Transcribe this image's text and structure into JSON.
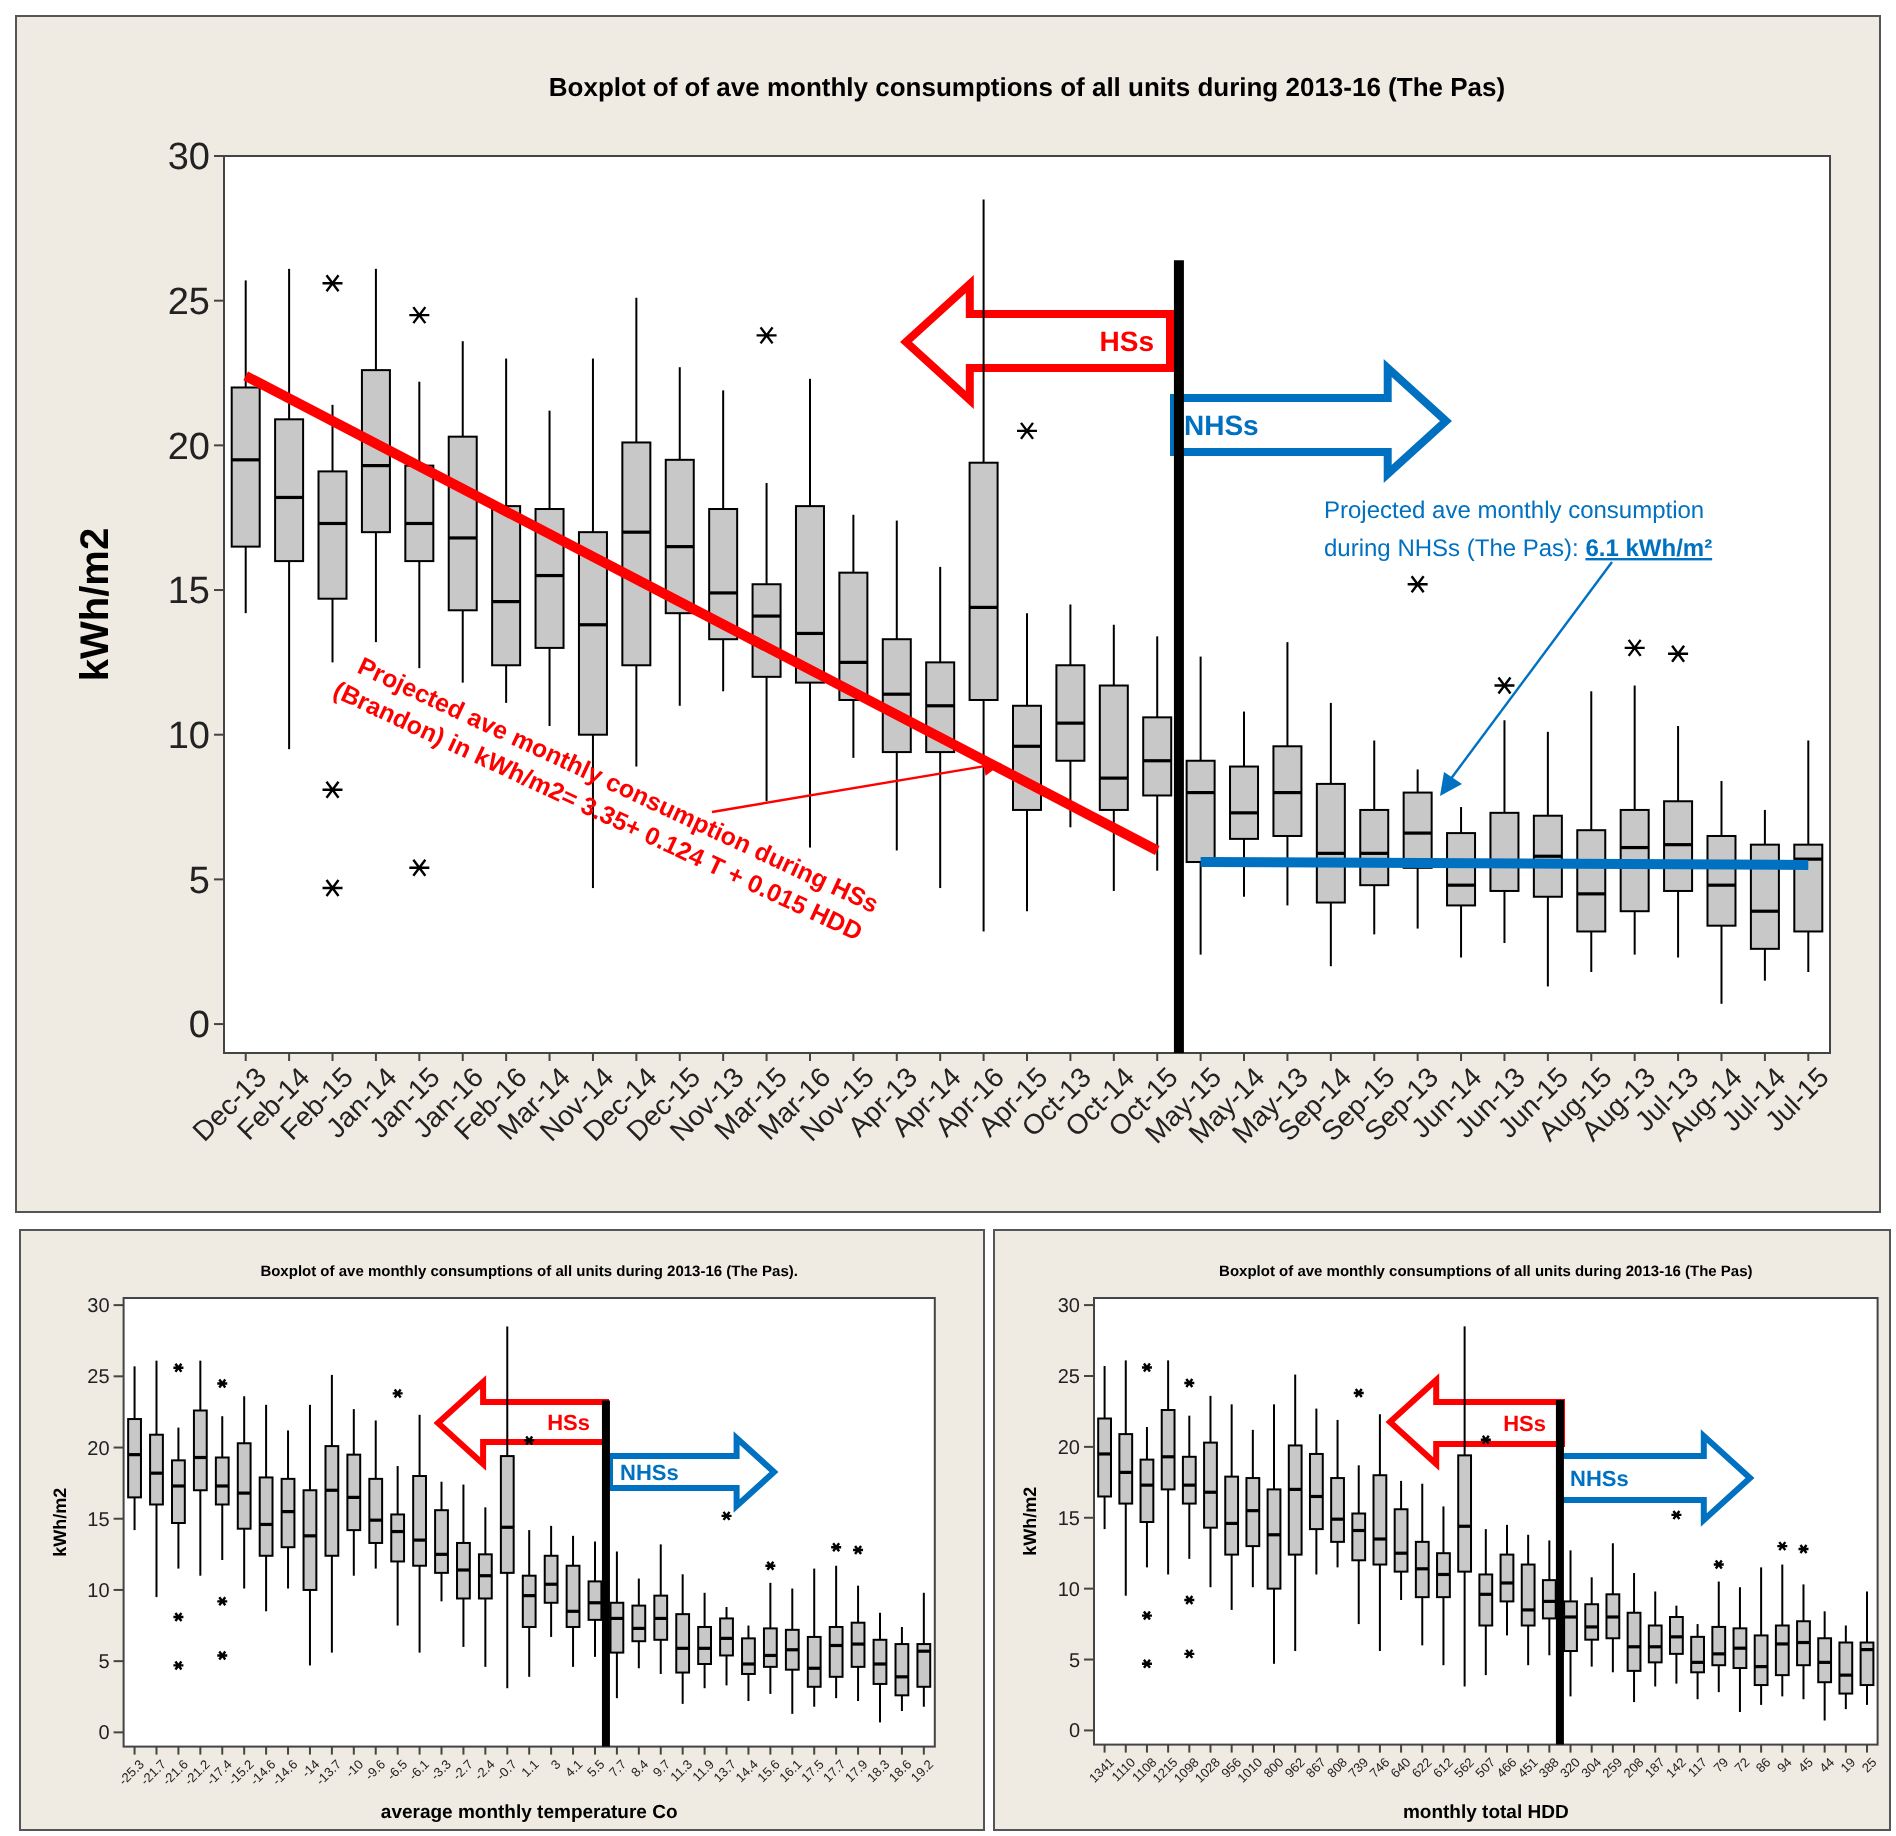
{
  "chart_data": [
    {
      "type": "box",
      "title": "Boxplot of of ave monthly consumptions of all units during 2013-16 (The Pas)",
      "ylabel": "kWh/m2",
      "categories": [
        "Dec-13",
        "Feb-14",
        "Feb-15",
        "Jan-14",
        "Jan-15",
        "Jan-16",
        "Feb-16",
        "Mar-14",
        "Nov-14",
        "Dec-14",
        "Dec-15",
        "Nov-13",
        "Mar-15",
        "Mar-16",
        "Nov-15",
        "Apr-13",
        "Apr-14",
        "Apr-16",
        "Apr-15",
        "Oct-13",
        "Oct-14",
        "Oct-15",
        "May-15",
        "May-14",
        "May-13",
        "Sep-14",
        "Sep-15",
        "Sep-13",
        "Jun-14",
        "Jun-13",
        "Jun-15",
        "Aug-15",
        "Aug-13",
        "Jul-13",
        "Aug-14",
        "Jul-14",
        "Jul-15"
      ],
      "ylim": [
        -1,
        30
      ],
      "yticks": [
        0,
        5,
        10,
        15,
        20,
        25,
        30
      ],
      "grid": false,
      "boxes": [
        {
          "low": 14.2,
          "q1": 16.5,
          "median": 19.5,
          "q3": 22.0,
          "high": 25.7
        },
        {
          "low": 9.5,
          "q1": 16.0,
          "median": 18.2,
          "q3": 20.9,
          "high": 26.1
        },
        {
          "low": 12.5,
          "q1": 14.7,
          "median": 17.3,
          "q3": 19.1,
          "high": 21.4,
          "outliers": [
            25.6,
            8.1,
            4.7
          ]
        },
        {
          "low": 13.2,
          "q1": 17.0,
          "median": 19.3,
          "q3": 22.6,
          "high": 26.1
        },
        {
          "low": 12.3,
          "q1": 16.0,
          "median": 17.3,
          "q3": 19.3,
          "high": 22.2,
          "outliers": [
            24.5,
            5.4
          ]
        },
        {
          "low": 11.8,
          "q1": 14.3,
          "median": 16.8,
          "q3": 20.3,
          "high": 23.6
        },
        {
          "low": 11.1,
          "q1": 12.4,
          "median": 14.6,
          "q3": 17.9,
          "high": 23.0
        },
        {
          "low": 10.3,
          "q1": 13.0,
          "median": 15.5,
          "q3": 17.8,
          "high": 21.2
        },
        {
          "low": 4.7,
          "q1": 10.0,
          "median": 13.8,
          "q3": 17.0,
          "high": 23.0
        },
        {
          "low": 8.9,
          "q1": 12.4,
          "median": 17.0,
          "q3": 20.1,
          "high": 25.1
        },
        {
          "low": 11.0,
          "q1": 14.2,
          "median": 16.5,
          "q3": 19.5,
          "high": 22.7
        },
        {
          "low": 11.5,
          "q1": 13.3,
          "median": 14.9,
          "q3": 17.8,
          "high": 21.9
        },
        {
          "low": 7.7,
          "q1": 12.0,
          "median": 14.1,
          "q3": 15.2,
          "high": 18.7,
          "outliers": [
            23.8
          ]
        },
        {
          "low": 6.1,
          "q1": 11.8,
          "median": 13.5,
          "q3": 17.9,
          "high": 22.3
        },
        {
          "low": 9.2,
          "q1": 11.2,
          "median": 12.5,
          "q3": 15.6,
          "high": 17.6
        },
        {
          "low": 6.0,
          "q1": 9.4,
          "median": 11.4,
          "q3": 13.3,
          "high": 17.4
        },
        {
          "low": 4.7,
          "q1": 9.4,
          "median": 11.0,
          "q3": 12.5,
          "high": 15.8
        },
        {
          "low": 3.2,
          "q1": 11.2,
          "median": 14.4,
          "q3": 19.4,
          "high": 28.5
        },
        {
          "low": 3.9,
          "q1": 7.4,
          "median": 9.6,
          "q3": 11.0,
          "high": 14.2,
          "outliers": [
            20.5
          ]
        },
        {
          "low": 6.8,
          "q1": 9.1,
          "median": 10.4,
          "q3": 12.4,
          "high": 14.5
        },
        {
          "low": 4.6,
          "q1": 7.4,
          "median": 8.5,
          "q3": 11.7,
          "high": 13.8
        },
        {
          "low": 5.3,
          "q1": 7.9,
          "median": 9.1,
          "q3": 10.6,
          "high": 13.4
        },
        {
          "low": 2.4,
          "q1": 5.6,
          "median": 8.0,
          "q3": 9.1,
          "high": 12.7
        },
        {
          "low": 4.4,
          "q1": 6.4,
          "median": 7.3,
          "q3": 8.9,
          "high": 10.8
        },
        {
          "low": 4.1,
          "q1": 6.5,
          "median": 8.0,
          "q3": 9.6,
          "high": 13.2
        },
        {
          "low": 2.0,
          "q1": 4.2,
          "median": 5.9,
          "q3": 8.3,
          "high": 11.1
        },
        {
          "low": 3.1,
          "q1": 4.8,
          "median": 5.9,
          "q3": 7.4,
          "high": 9.8
        },
        {
          "low": 3.3,
          "q1": 5.4,
          "median": 6.6,
          "q3": 8.0,
          "high": 8.8,
          "outliers": [
            15.2
          ]
        },
        {
          "low": 2.3,
          "q1": 4.1,
          "median": 4.8,
          "q3": 6.6,
          "high": 7.5
        },
        {
          "low": 2.8,
          "q1": 4.6,
          "median": 5.5,
          "q3": 7.3,
          "high": 10.5,
          "outliers": [
            11.7
          ]
        },
        {
          "low": 1.3,
          "q1": 4.4,
          "median": 5.8,
          "q3": 7.2,
          "high": 10.1
        },
        {
          "low": 1.8,
          "q1": 3.2,
          "median": 4.5,
          "q3": 6.7,
          "high": 11.5
        },
        {
          "low": 2.4,
          "q1": 3.9,
          "median": 6.1,
          "q3": 7.4,
          "high": 11.7,
          "outliers": [
            13.0
          ]
        },
        {
          "low": 2.3,
          "q1": 4.6,
          "median": 6.2,
          "q3": 7.7,
          "high": 10.3,
          "outliers": [
            12.8
          ]
        },
        {
          "low": 0.7,
          "q1": 3.4,
          "median": 4.8,
          "q3": 6.5,
          "high": 8.4
        },
        {
          "low": 1.5,
          "q1": 2.6,
          "median": 3.9,
          "q3": 6.2,
          "high": 7.4
        },
        {
          "low": 1.8,
          "q1": 3.2,
          "median": 5.7,
          "q3": 6.2,
          "high": 9.8
        }
      ],
      "series": [
        {
          "type": "line",
          "color": "#ff0000",
          "x": [
            "Dec-13",
            "Oct-15"
          ],
          "values": [
            22.4,
            6.0
          ]
        },
        {
          "type": "line",
          "color": "#0070c0",
          "x": [
            "May-15",
            "Jul-15"
          ],
          "values": [
            5.6,
            5.5
          ]
        }
      ],
      "annotations": [
        "HSs",
        "NHSs",
        {
          "text": "Projected ave monthly consumption during HSs (Brandon) in kWh/m2= 3.35+ 0.124 T + 0.015 HDD",
          "x": "Apr-16",
          "y": 9.0
        },
        "Projected ave monthly consumption during NHSs (The Pas): 6.1 kWh/m²"
      ]
    },
    {
      "type": "box",
      "title": "Boxplot of ave monthly consumptions of all units during 2013-16 (The Pas).",
      "ylabel": "kWh/m2",
      "xlabel": "average monthly temperature Co",
      "categories": [
        "-25.3",
        "-21.7",
        "-21.6",
        "-21.2",
        "-17.4",
        "-15.2",
        "-14.6",
        "-14.6",
        "-14",
        "-13.7",
        "-10",
        "-9.6",
        "-6.5",
        "-6.1",
        "-3.3",
        "-2.7",
        "-2.4",
        "-0.7",
        "1.1",
        "3",
        "4.1",
        "5.5",
        "7.7",
        "8.4",
        "9.7",
        "11.3",
        "11.9",
        "13.7",
        "14.4",
        "15.6",
        "16.1",
        "17.5",
        "17.7",
        "17.9",
        "18.3",
        "18.6",
        "19.2"
      ],
      "ylim": [
        -1,
        30.5
      ],
      "yticks": [
        0,
        5,
        10,
        15,
        20,
        25,
        30
      ],
      "grid": false,
      "boxes": [
        {
          "low": 14.2,
          "q1": 16.5,
          "median": 19.5,
          "q3": 22.0,
          "high": 25.7
        },
        {
          "low": 9.5,
          "q1": 16.0,
          "median": 18.2,
          "q3": 20.9,
          "high": 26.1
        },
        {
          "low": 11.5,
          "q1": 14.7,
          "median": 17.3,
          "q3": 19.1,
          "high": 21.4,
          "outliers": [
            25.6,
            8.1,
            4.7
          ]
        },
        {
          "low": 11.0,
          "q1": 17.0,
          "median": 19.3,
          "q3": 22.6,
          "high": 26.1
        },
        {
          "low": 12.1,
          "q1": 16.0,
          "median": 17.3,
          "q3": 19.3,
          "high": 22.2,
          "outliers": [
            24.5,
            9.2,
            5.4
          ]
        },
        {
          "low": 10.1,
          "q1": 14.3,
          "median": 16.8,
          "q3": 20.3,
          "high": 23.6
        },
        {
          "low": 8.5,
          "q1": 12.4,
          "median": 14.6,
          "q3": 17.9,
          "high": 23.0
        },
        {
          "low": 10.1,
          "q1": 13.0,
          "median": 15.5,
          "q3": 17.8,
          "high": 21.2
        },
        {
          "low": 4.7,
          "q1": 10.0,
          "median": 13.8,
          "q3": 17.0,
          "high": 23.0
        },
        {
          "low": 5.6,
          "q1": 12.4,
          "median": 17.0,
          "q3": 20.1,
          "high": 25.1
        },
        {
          "low": 11.0,
          "q1": 14.2,
          "median": 16.5,
          "q3": 19.5,
          "high": 22.7
        },
        {
          "low": 11.5,
          "q1": 13.3,
          "median": 14.9,
          "q3": 17.8,
          "high": 21.9
        },
        {
          "low": 7.5,
          "q1": 12.0,
          "median": 14.1,
          "q3": 15.3,
          "high": 18.7,
          "outliers": [
            23.8
          ]
        },
        {
          "low": 5.6,
          "q1": 11.7,
          "median": 13.5,
          "q3": 18.0,
          "high": 22.3
        },
        {
          "low": 9.2,
          "q1": 11.2,
          "median": 12.5,
          "q3": 15.6,
          "high": 17.6
        },
        {
          "low": 6.0,
          "q1": 9.4,
          "median": 11.4,
          "q3": 13.3,
          "high": 17.4
        },
        {
          "low": 4.6,
          "q1": 9.4,
          "median": 11.0,
          "q3": 12.5,
          "high": 15.8
        },
        {
          "low": 3.1,
          "q1": 11.2,
          "median": 14.4,
          "q3": 19.4,
          "high": 28.5
        },
        {
          "low": 3.9,
          "q1": 7.4,
          "median": 9.6,
          "q3": 11.0,
          "high": 14.2,
          "outliers": [
            20.5
          ]
        },
        {
          "low": 6.7,
          "q1": 9.1,
          "median": 10.4,
          "q3": 12.4,
          "high": 14.5
        },
        {
          "low": 4.6,
          "q1": 7.4,
          "median": 8.5,
          "q3": 11.7,
          "high": 13.8
        },
        {
          "low": 5.3,
          "q1": 7.9,
          "median": 9.1,
          "q3": 10.6,
          "high": 13.4
        },
        {
          "low": 2.4,
          "q1": 5.6,
          "median": 8.0,
          "q3": 9.1,
          "high": 12.7
        },
        {
          "low": 4.5,
          "q1": 6.4,
          "median": 7.3,
          "q3": 8.9,
          "high": 10.8
        },
        {
          "low": 4.1,
          "q1": 6.5,
          "median": 8.0,
          "q3": 9.6,
          "high": 13.2
        },
        {
          "low": 2.0,
          "q1": 4.2,
          "median": 5.9,
          "q3": 8.3,
          "high": 11.1
        },
        {
          "low": 3.1,
          "q1": 4.8,
          "median": 5.9,
          "q3": 7.4,
          "high": 9.8
        },
        {
          "low": 3.3,
          "q1": 5.4,
          "median": 6.6,
          "q3": 8.0,
          "high": 8.8,
          "outliers": [
            15.2
          ]
        },
        {
          "low": 2.2,
          "q1": 4.1,
          "median": 4.8,
          "q3": 6.6,
          "high": 7.5
        },
        {
          "low": 2.7,
          "q1": 4.6,
          "median": 5.4,
          "q3": 7.3,
          "high": 10.5,
          "outliers": [
            11.7
          ]
        },
        {
          "low": 1.3,
          "q1": 4.4,
          "median": 5.8,
          "q3": 7.2,
          "high": 10.1
        },
        {
          "low": 1.8,
          "q1": 3.2,
          "median": 4.5,
          "q3": 6.7,
          "high": 11.5
        },
        {
          "low": 2.4,
          "q1": 3.9,
          "median": 6.1,
          "q3": 7.4,
          "high": 11.7,
          "outliers": [
            13.0
          ]
        },
        {
          "low": 2.2,
          "q1": 4.6,
          "median": 6.2,
          "q3": 7.7,
          "high": 10.3,
          "outliers": [
            12.8
          ]
        },
        {
          "low": 0.7,
          "q1": 3.4,
          "median": 4.8,
          "q3": 6.5,
          "high": 8.4
        },
        {
          "low": 1.5,
          "q1": 2.6,
          "median": 3.9,
          "q3": 6.2,
          "high": 7.4
        },
        {
          "low": 1.8,
          "q1": 3.2,
          "median": 5.7,
          "q3": 6.2,
          "high": 9.8
        }
      ],
      "annotations": [
        "HSs",
        "NHSs"
      ]
    },
    {
      "type": "box",
      "title": "Boxplot of ave monthly consumptions of all units during 2013-16 (The Pas)",
      "ylabel": "kWh/m2",
      "xlabel": "monthly total HDD",
      "categories": [
        "1341",
        "1110",
        "1108",
        "1215",
        "1098",
        "1028",
        "956",
        "1010",
        "800",
        "962",
        "867",
        "808",
        "739",
        "746",
        "640",
        "622",
        "612",
        "562",
        "507",
        "466",
        "451",
        "388",
        "320",
        "304",
        "259",
        "208",
        "187",
        "142",
        "117",
        "79",
        "72",
        "86",
        "94",
        "45",
        "44",
        "19",
        "25"
      ],
      "ylim": [
        -1,
        30.5
      ],
      "yticks": [
        0,
        5,
        10,
        15,
        20,
        25,
        30
      ],
      "grid": false,
      "boxes": [
        {
          "low": 14.2,
          "q1": 16.5,
          "median": 19.5,
          "q3": 22.0,
          "high": 25.7
        },
        {
          "low": 9.5,
          "q1": 16.0,
          "median": 18.2,
          "q3": 20.9,
          "high": 26.1
        },
        {
          "low": 11.5,
          "q1": 14.7,
          "median": 17.3,
          "q3": 19.1,
          "high": 21.4,
          "outliers": [
            25.6,
            8.1,
            4.7
          ]
        },
        {
          "low": 11.0,
          "q1": 17.0,
          "median": 19.3,
          "q3": 22.6,
          "high": 26.1
        },
        {
          "low": 12.1,
          "q1": 16.0,
          "median": 17.3,
          "q3": 19.3,
          "high": 22.2,
          "outliers": [
            24.5,
            9.2,
            5.4
          ]
        },
        {
          "low": 10.1,
          "q1": 14.3,
          "median": 16.8,
          "q3": 20.3,
          "high": 23.6
        },
        {
          "low": 8.5,
          "q1": 12.4,
          "median": 14.6,
          "q3": 17.9,
          "high": 23.0
        },
        {
          "low": 10.1,
          "q1": 13.0,
          "median": 15.5,
          "q3": 17.8,
          "high": 21.2
        },
        {
          "low": 4.7,
          "q1": 10.0,
          "median": 13.8,
          "q3": 17.0,
          "high": 23.0
        },
        {
          "low": 5.6,
          "q1": 12.4,
          "median": 17.0,
          "q3": 20.1,
          "high": 25.1
        },
        {
          "low": 11.0,
          "q1": 14.2,
          "median": 16.5,
          "q3": 19.5,
          "high": 22.7
        },
        {
          "low": 11.5,
          "q1": 13.3,
          "median": 14.9,
          "q3": 17.8,
          "high": 21.9
        },
        {
          "low": 7.5,
          "q1": 12.0,
          "median": 14.1,
          "q3": 15.3,
          "high": 18.7,
          "outliers": [
            23.8
          ]
        },
        {
          "low": 5.6,
          "q1": 11.7,
          "median": 13.5,
          "q3": 18.0,
          "high": 22.3
        },
        {
          "low": 9.2,
          "q1": 11.2,
          "median": 12.5,
          "q3": 15.6,
          "high": 17.6
        },
        {
          "low": 6.0,
          "q1": 9.4,
          "median": 11.4,
          "q3": 13.3,
          "high": 17.4
        },
        {
          "low": 4.6,
          "q1": 9.4,
          "median": 11.0,
          "q3": 12.5,
          "high": 15.8
        },
        {
          "low": 3.1,
          "q1": 11.2,
          "median": 14.4,
          "q3": 19.4,
          "high": 28.5
        },
        {
          "low": 3.9,
          "q1": 7.4,
          "median": 9.6,
          "q3": 11.0,
          "high": 14.2,
          "outliers": [
            20.5
          ]
        },
        {
          "low": 6.7,
          "q1": 9.1,
          "median": 10.4,
          "q3": 12.4,
          "high": 14.5
        },
        {
          "low": 4.6,
          "q1": 7.4,
          "median": 8.5,
          "q3": 11.7,
          "high": 13.8
        },
        {
          "low": 5.3,
          "q1": 7.9,
          "median": 9.1,
          "q3": 10.6,
          "high": 13.4
        },
        {
          "low": 2.4,
          "q1": 5.6,
          "median": 8.0,
          "q3": 9.1,
          "high": 12.7
        },
        {
          "low": 4.5,
          "q1": 6.4,
          "median": 7.3,
          "q3": 8.9,
          "high": 10.8
        },
        {
          "low": 4.1,
          "q1": 6.5,
          "median": 8.0,
          "q3": 9.6,
          "high": 13.2
        },
        {
          "low": 2.0,
          "q1": 4.2,
          "median": 5.9,
          "q3": 8.3,
          "high": 11.1
        },
        {
          "low": 3.1,
          "q1": 4.8,
          "median": 5.9,
          "q3": 7.4,
          "high": 9.8
        },
        {
          "low": 3.3,
          "q1": 5.4,
          "median": 6.6,
          "q3": 8.0,
          "high": 8.8,
          "outliers": [
            15.2
          ]
        },
        {
          "low": 2.2,
          "q1": 4.1,
          "median": 4.8,
          "q3": 6.6,
          "high": 7.5
        },
        {
          "low": 2.7,
          "q1": 4.6,
          "median": 5.4,
          "q3": 7.3,
          "high": 10.5,
          "outliers": [
            11.7
          ]
        },
        {
          "low": 1.3,
          "q1": 4.4,
          "median": 5.8,
          "q3": 7.2,
          "high": 10.1
        },
        {
          "low": 1.8,
          "q1": 3.2,
          "median": 4.5,
          "q3": 6.7,
          "high": 11.5
        },
        {
          "low": 2.4,
          "q1": 3.9,
          "median": 6.1,
          "q3": 7.4,
          "high": 11.7,
          "outliers": [
            13.0
          ]
        },
        {
          "low": 2.2,
          "q1": 4.6,
          "median": 6.2,
          "q3": 7.7,
          "high": 10.3,
          "outliers": [
            12.8
          ]
        },
        {
          "low": 0.7,
          "q1": 3.4,
          "median": 4.8,
          "q3": 6.5,
          "high": 8.4
        },
        {
          "low": 1.5,
          "q1": 2.6,
          "median": 3.9,
          "q3": 6.2,
          "high": 7.4
        },
        {
          "low": 1.8,
          "q1": 3.2,
          "median": 5.7,
          "q3": 6.2,
          "high": 9.8
        }
      ],
      "annotations": [
        "HSs",
        "NHSs"
      ]
    }
  ]
}
